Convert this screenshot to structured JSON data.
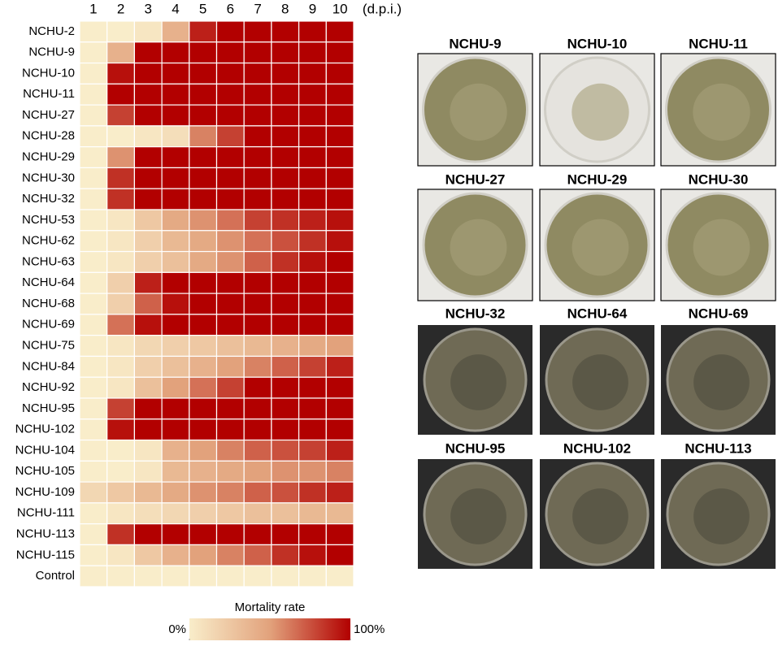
{
  "chart_data": {
    "type": "heatmap",
    "x_label": "(d.p.i.)",
    "categories": [
      "1",
      "2",
      "3",
      "4",
      "5",
      "6",
      "7",
      "8",
      "9",
      "10"
    ],
    "rows": [
      "NCHU-2",
      "NCHU-9",
      "NCHU-10",
      "NCHU-11",
      "NCHU-27",
      "NCHU-28",
      "NCHU-29",
      "NCHU-30",
      "NCHU-32",
      "NCHU-53",
      "NCHU-62",
      "NCHU-63",
      "NCHU-64",
      "NCHU-68",
      "NCHU-69",
      "NCHU-75",
      "NCHU-84",
      "NCHU-92",
      "NCHU-95",
      "NCHU-102",
      "NCHU-104",
      "NCHU-105",
      "NCHU-109",
      "NCHU-111",
      "NCHU-113",
      "NCHU-115",
      "Control"
    ],
    "values": [
      [
        0,
        0,
        5,
        40,
        90,
        100,
        100,
        100,
        100,
        100
      ],
      [
        0,
        40,
        100,
        100,
        100,
        100,
        100,
        100,
        100,
        100
      ],
      [
        0,
        95,
        100,
        100,
        100,
        100,
        100,
        100,
        100,
        100
      ],
      [
        0,
        100,
        100,
        100,
        100,
        100,
        100,
        100,
        100,
        100
      ],
      [
        0,
        80,
        100,
        100,
        100,
        100,
        100,
        100,
        100,
        100
      ],
      [
        0,
        0,
        5,
        10,
        60,
        80,
        100,
        100,
        100,
        100
      ],
      [
        0,
        55,
        100,
        100,
        100,
        100,
        100,
        100,
        100,
        100
      ],
      [
        0,
        85,
        100,
        100,
        100,
        100,
        100,
        100,
        100,
        100
      ],
      [
        0,
        85,
        100,
        100,
        100,
        100,
        100,
        100,
        100,
        100
      ],
      [
        0,
        5,
        25,
        45,
        55,
        65,
        80,
        85,
        90,
        95
      ],
      [
        0,
        5,
        20,
        35,
        45,
        55,
        65,
        75,
        85,
        95
      ],
      [
        0,
        5,
        20,
        30,
        45,
        55,
        70,
        85,
        95,
        100
      ],
      [
        0,
        20,
        90,
        100,
        100,
        100,
        100,
        100,
        100,
        100
      ],
      [
        0,
        20,
        70,
        95,
        100,
        100,
        100,
        100,
        100,
        100
      ],
      [
        0,
        65,
        95,
        100,
        100,
        100,
        100,
        100,
        100,
        100
      ],
      [
        0,
        5,
        15,
        20,
        25,
        30,
        35,
        40,
        45,
        50
      ],
      [
        0,
        5,
        20,
        30,
        40,
        50,
        60,
        70,
        80,
        90
      ],
      [
        0,
        5,
        30,
        50,
        65,
        80,
        100,
        100,
        100,
        100
      ],
      [
        0,
        80,
        100,
        100,
        100,
        100,
        100,
        100,
        100,
        100
      ],
      [
        0,
        95,
        100,
        100,
        100,
        100,
        100,
        100,
        100,
        100
      ],
      [
        0,
        0,
        5,
        40,
        50,
        60,
        70,
        75,
        80,
        90
      ],
      [
        0,
        0,
        5,
        35,
        40,
        45,
        50,
        55,
        55,
        60
      ],
      [
        15,
        25,
        35,
        45,
        55,
        60,
        70,
        75,
        85,
        90
      ],
      [
        0,
        5,
        10,
        15,
        20,
        25,
        30,
        30,
        35,
        35
      ],
      [
        0,
        85,
        100,
        100,
        100,
        100,
        100,
        100,
        100,
        100
      ],
      [
        0,
        5,
        25,
        40,
        50,
        60,
        70,
        85,
        95,
        100
      ],
      [
        0,
        0,
        0,
        0,
        0,
        0,
        0,
        0,
        0,
        0
      ]
    ],
    "colorscale": [
      "#f9edca",
      "#e2a27c",
      "#b20000"
    ],
    "zlim": [
      0,
      100
    ],
    "colorbar_title": "Mortality rate",
    "colorbar_ticks": [
      {
        "value": 0,
        "label": "0%"
      },
      {
        "value": 100,
        "label": "100%"
      }
    ]
  },
  "photos": [
    {
      "label": "NCHU-9"
    },
    {
      "label": "NCHU-10"
    },
    {
      "label": "NCHU-11"
    },
    {
      "label": "NCHU-27"
    },
    {
      "label": "NCHU-29"
    },
    {
      "label": "NCHU-30"
    },
    {
      "label": "NCHU-32"
    },
    {
      "label": "NCHU-64"
    },
    {
      "label": "NCHU-69"
    },
    {
      "label": "NCHU-95"
    },
    {
      "label": "NCHU-102"
    },
    {
      "label": "NCHU-113"
    }
  ]
}
